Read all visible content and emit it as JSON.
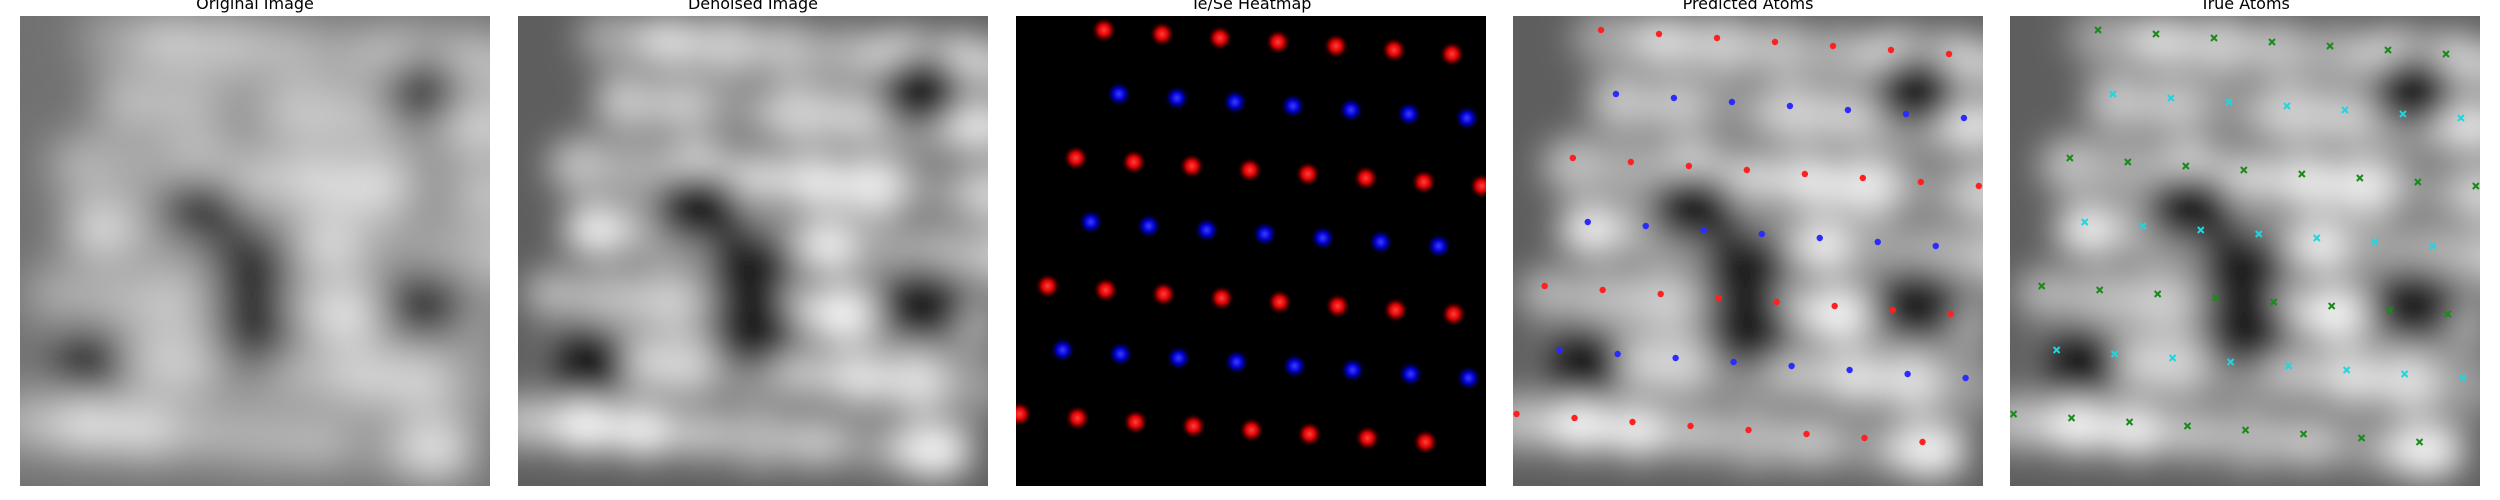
{
  "panels": [
    {
      "title": "Original Image"
    },
    {
      "title": "Denoised Image"
    },
    {
      "title": "Te/Se Heatmap"
    },
    {
      "title": "Predicted Atoms"
    },
    {
      "title": "True Atoms"
    }
  ],
  "colors": {
    "te": "#ff2020",
    "se": "#2b2bff",
    "true_green": "#1a8a1a",
    "true_cyan": "#1ed6e0",
    "heatmap_background": "#000000"
  },
  "lattice": {
    "rows": 7,
    "columns": 8,
    "row_pattern": [
      "Te",
      "Se"
    ]
  }
}
